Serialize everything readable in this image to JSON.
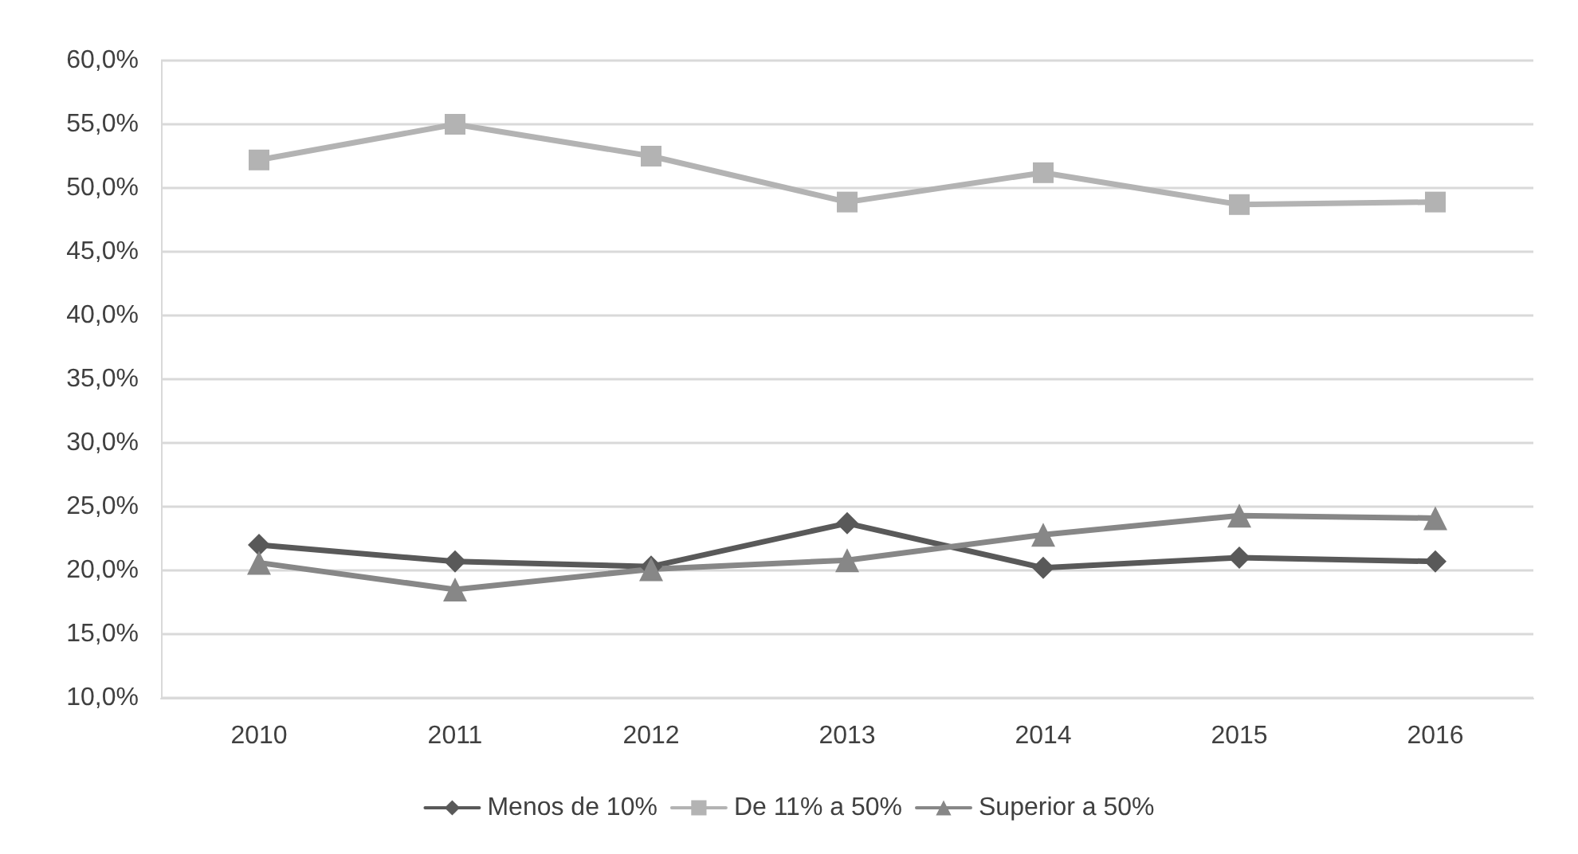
{
  "chart_data": {
    "type": "line",
    "categories": [
      "2010",
      "2011",
      "2012",
      "2013",
      "2014",
      "2015",
      "2016"
    ],
    "series": [
      {
        "name": "Menos de 10%",
        "color": "#595959",
        "marker": "diamond",
        "values": [
          22.0,
          20.7,
          20.3,
          23.7,
          20.2,
          21.0,
          20.7
        ]
      },
      {
        "name": "De 11% a 50%",
        "color": "#b3b3b3",
        "marker": "square",
        "values": [
          52.2,
          55.0,
          52.5,
          48.9,
          51.2,
          48.7,
          48.9
        ]
      },
      {
        "name": "Superior a 50%",
        "color": "#878787",
        "marker": "triangle",
        "values": [
          20.6,
          18.5,
          20.1,
          20.8,
          22.8,
          24.3,
          24.1
        ]
      }
    ],
    "ylim": [
      10,
      60
    ],
    "yticks": [
      {
        "value": 10,
        "label": "10,0%"
      },
      {
        "value": 15,
        "label": "15,0%"
      },
      {
        "value": 20,
        "label": "20,0%"
      },
      {
        "value": 25,
        "label": "25,0%"
      },
      {
        "value": 30,
        "label": "30,0%"
      },
      {
        "value": 35,
        "label": "35,0%"
      },
      {
        "value": 40,
        "label": "40,0%"
      },
      {
        "value": 45,
        "label": "45,0%"
      },
      {
        "value": 50,
        "label": "50,0%"
      },
      {
        "value": 55,
        "label": "55,0%"
      },
      {
        "value": 60,
        "label": "60,0%"
      }
    ],
    "grid": "y",
    "legend": "bottom",
    "line_style": "solid"
  }
}
